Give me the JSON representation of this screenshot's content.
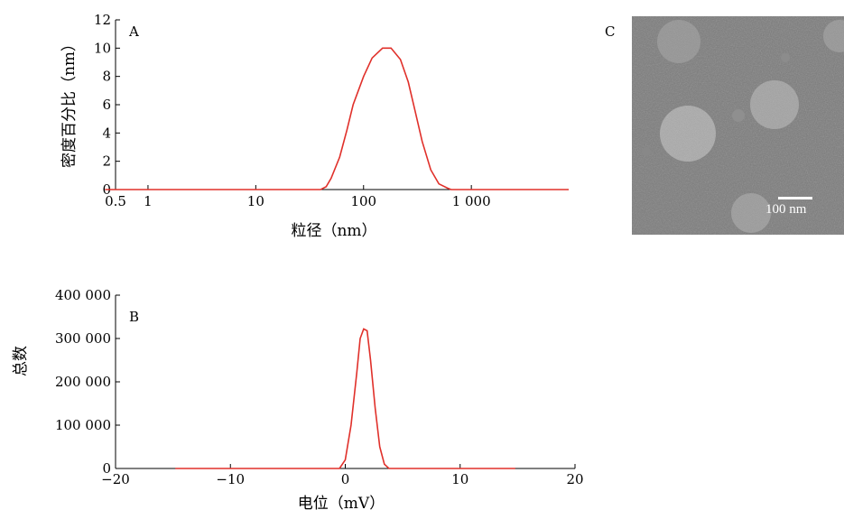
{
  "panels": {
    "a": {
      "letter": "A"
    },
    "b": {
      "letter": "B"
    },
    "c": {
      "letter": "C",
      "scale_bar_label": "100 nm"
    }
  },
  "colors": {
    "curve": "#e0302a",
    "axis": "#000000"
  },
  "chart_data": [
    {
      "type": "line",
      "panel": "A",
      "xlabel": "粒径（nm）",
      "ylabel": "密度百分比（nm）",
      "x_scale": "log",
      "xlim": [
        0.5,
        8000
      ],
      "ylim": [
        0,
        12
      ],
      "x_ticks": [
        0.5,
        1,
        10,
        100,
        1000
      ],
      "x_tick_labels": [
        "0.5",
        "1",
        "10",
        "100",
        "1 000"
      ],
      "y_ticks": [
        0,
        2,
        4,
        6,
        8,
        10,
        12
      ],
      "y_tick_labels": [
        "0",
        "2",
        "4",
        "6",
        "8",
        "10",
        "12"
      ],
      "grid": false,
      "series": [
        {
          "x": [
            0.4,
            1,
            10,
            40,
            45,
            50,
            60,
            70,
            80,
            100,
            120,
            150,
            180,
            220,
            260,
            300,
            350,
            420,
            500,
            600,
            650,
            1000,
            8000
          ],
          "y": [
            0,
            0,
            0,
            0,
            0.2,
            0.8,
            2.3,
            4.2,
            6.0,
            8.0,
            9.3,
            10.0,
            10.0,
            9.2,
            7.6,
            5.6,
            3.4,
            1.4,
            0.4,
            0.1,
            0,
            0,
            0
          ]
        }
      ]
    },
    {
      "type": "line",
      "panel": "B",
      "xlabel": "电位（mV）",
      "ylabel": "总数",
      "xlim": [
        -20,
        20
      ],
      "ylim": [
        0,
        400000
      ],
      "x_ticks": [
        -20,
        -10,
        0,
        10,
        20
      ],
      "x_tick_labels": [
        "−20",
        "−10",
        "0",
        "10",
        "20"
      ],
      "y_ticks": [
        0,
        100000,
        200000,
        300000,
        400000
      ],
      "y_tick_labels": [
        "0",
        "100 000",
        "200 000",
        "300 000",
        "400 000"
      ],
      "grid": false,
      "series": [
        {
          "x": [
            -14.8,
            -0.5,
            0,
            0.5,
            1.0,
            1.3,
            1.6,
            1.9,
            2.2,
            2.6,
            3.0,
            3.4,
            3.8,
            14.8
          ],
          "y": [
            0,
            0,
            20000,
            100000,
            220000,
            300000,
            322000,
            318000,
            250000,
            140000,
            50000,
            10000,
            0,
            0
          ]
        }
      ]
    }
  ]
}
